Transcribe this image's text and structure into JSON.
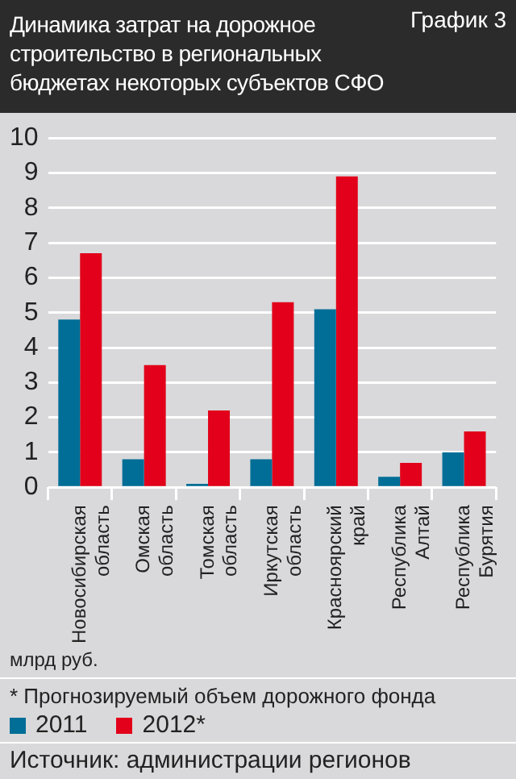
{
  "chart_data": {
    "type": "bar",
    "title": "Динамика затрат на дорожное строительство в региональных бюджетах некоторых субъектов СФО",
    "ylabel": "млрд руб.",
    "categories": [
      "Новосибирская область",
      "Омская область",
      "Томская область",
      "Иркутская область",
      "Красноярский край",
      "Республика Алтай",
      "Республика Бурятия"
    ],
    "series": [
      {
        "name": "2011",
        "color": "#006e96",
        "values": [
          4.8,
          0.8,
          0.1,
          0.8,
          5.1,
          0.3,
          1.0
        ]
      },
      {
        "name": "2012*",
        "color": "#e2001a",
        "values": [
          6.7,
          3.5,
          2.2,
          5.3,
          8.9,
          0.7,
          1.6
        ]
      }
    ],
    "ylim": [
      0,
      10
    ],
    "yticks": [
      0,
      1,
      2,
      3,
      4,
      5,
      6,
      7,
      8,
      9,
      10
    ],
    "grid": "y",
    "legend": "bottom",
    "annotations": [
      "График 3",
      "* Прогнозируемый объем дорожного фонда",
      "Источник: администрации регионов"
    ]
  }
}
